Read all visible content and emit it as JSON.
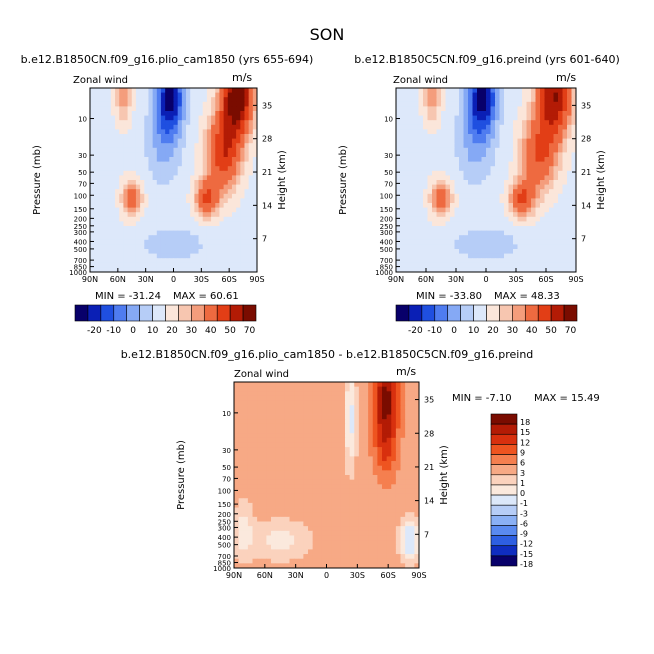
{
  "figure_title": "SON",
  "chart_data": [
    {
      "type": "heatmap",
      "title": "b.e12.B1850CN.f09_g16.plio_cam1850 (yrs 655-694)",
      "variable": "Zonal wind",
      "units": "m/s",
      "xlabel": "",
      "ylabel": "Pressure (mb)",
      "ylabel_right": "Height (km)",
      "x_ticks": [
        "90N",
        "60N",
        "30N",
        "0",
        "30S",
        "60S",
        "90S"
      ],
      "y_ticks": [
        "10",
        "30",
        "50",
        "70",
        "100",
        "150",
        "200",
        "250",
        "300",
        "400",
        "500",
        "700",
        "850",
        "1000"
      ],
      "y2_ticks": [
        "35",
        "28",
        "21",
        "14",
        "7"
      ],
      "min_text": "MIN = -31.24",
      "max_text": "MAX = 60.61",
      "min": -31.24,
      "max": 60.61,
      "colorbar_labels": [
        "-20",
        "-10",
        "0",
        "10",
        "20",
        "30",
        "40",
        "50",
        "70"
      ]
    },
    {
      "type": "heatmap",
      "title": "b.e12.B1850C5CN.f09_g16.preind (yrs 601-640)",
      "variable": "Zonal wind",
      "units": "m/s",
      "xlabel": "",
      "ylabel": "Pressure (mb)",
      "ylabel_right": "Height (km)",
      "x_ticks": [
        "90N",
        "60N",
        "30N",
        "0",
        "30S",
        "60S",
        "90S"
      ],
      "y_ticks": [
        "10",
        "30",
        "50",
        "70",
        "100",
        "150",
        "200",
        "250",
        "300",
        "400",
        "500",
        "700",
        "850",
        "1000"
      ],
      "y2_ticks": [
        "35",
        "28",
        "21",
        "14",
        "7"
      ],
      "min_text": "MIN = -33.80",
      "max_text": "MAX = 48.33",
      "min": -33.8,
      "max": 48.33,
      "colorbar_labels": [
        "-20",
        "-10",
        "0",
        "10",
        "20",
        "30",
        "40",
        "50",
        "70"
      ]
    },
    {
      "type": "heatmap",
      "title": "b.e12.B1850CN.f09_g16.plio_cam1850 - b.e12.B1850C5CN.f09_g16.preind",
      "variable": "Zonal wind",
      "units": "m/s",
      "xlabel": "",
      "ylabel": "Pressure (mb)",
      "ylabel_right": "Height (km)",
      "x_ticks": [
        "90N",
        "60N",
        "30N",
        "0",
        "30S",
        "60S",
        "90S"
      ],
      "y_ticks": [
        "10",
        "30",
        "50",
        "70",
        "100",
        "150",
        "200",
        "250",
        "300",
        "400",
        "500",
        "700",
        "850",
        "1000"
      ],
      "y2_ticks": [
        "35",
        "28",
        "21",
        "14",
        "7"
      ],
      "min_text": "MIN = -7.10",
      "max_text": "MAX = 15.49",
      "min": -7.1,
      "max": 15.49,
      "colorbar_labels": [
        "18",
        "15",
        "12",
        "9",
        "6",
        "3",
        "1",
        "0",
        "-1",
        "-3",
        "-6",
        "-9",
        "-12",
        "-15",
        "-18"
      ]
    }
  ],
  "colors": {
    "abs_scale": [
      "#08006a",
      "#0a1fb5",
      "#1f4fe0",
      "#4f7cf0",
      "#85a9f5",
      "#b6cdf7",
      "#dde8fa",
      "#fbe6da",
      "#f7c6b0",
      "#f49d7c",
      "#ee6a40",
      "#e23e16",
      "#b31b05",
      "#7a0c00"
    ],
    "diff_scale": [
      "#7a0c00",
      "#b31b05",
      "#d8300e",
      "#ee5420",
      "#f57f4f",
      "#f7a985",
      "#fbd2bd",
      "#fbe9dd",
      "#dce8fa",
      "#b6cdf7",
      "#8ab0f5",
      "#5a8af0",
      "#2e5fe2",
      "#0f2dc0",
      "#08006a"
    ]
  }
}
